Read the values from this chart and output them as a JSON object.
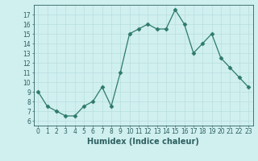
{
  "x": [
    0,
    1,
    2,
    3,
    4,
    5,
    6,
    7,
    8,
    9,
    10,
    11,
    12,
    13,
    14,
    15,
    16,
    17,
    18,
    19,
    20,
    21,
    22,
    23
  ],
  "y": [
    9,
    7.5,
    7,
    6.5,
    6.5,
    7.5,
    8,
    9.5,
    7.5,
    11,
    15,
    15.5,
    16,
    15.5,
    15.5,
    17.5,
    16,
    13,
    14,
    15,
    12.5,
    11.5,
    10.5,
    9.5
  ],
  "line_color": "#2d7a6a",
  "marker": "D",
  "marker_size": 2.5,
  "bg_color": "#d0efef",
  "grid_color": "#b8dede",
  "xlabel": "Humidex (Indice chaleur)",
  "xlim": [
    -0.5,
    23.5
  ],
  "ylim": [
    5.5,
    18.0
  ],
  "yticks": [
    6,
    7,
    8,
    9,
    10,
    11,
    12,
    13,
    14,
    15,
    16,
    17
  ],
  "xticks": [
    0,
    1,
    2,
    3,
    4,
    5,
    6,
    7,
    8,
    9,
    10,
    11,
    12,
    13,
    14,
    15,
    16,
    17,
    18,
    19,
    20,
    21,
    22,
    23
  ],
  "tick_label_fontsize": 5.5,
  "xlabel_fontsize": 7,
  "label_color": "#2d6060",
  "spine_color": "#2d6060",
  "linewidth": 0.9
}
